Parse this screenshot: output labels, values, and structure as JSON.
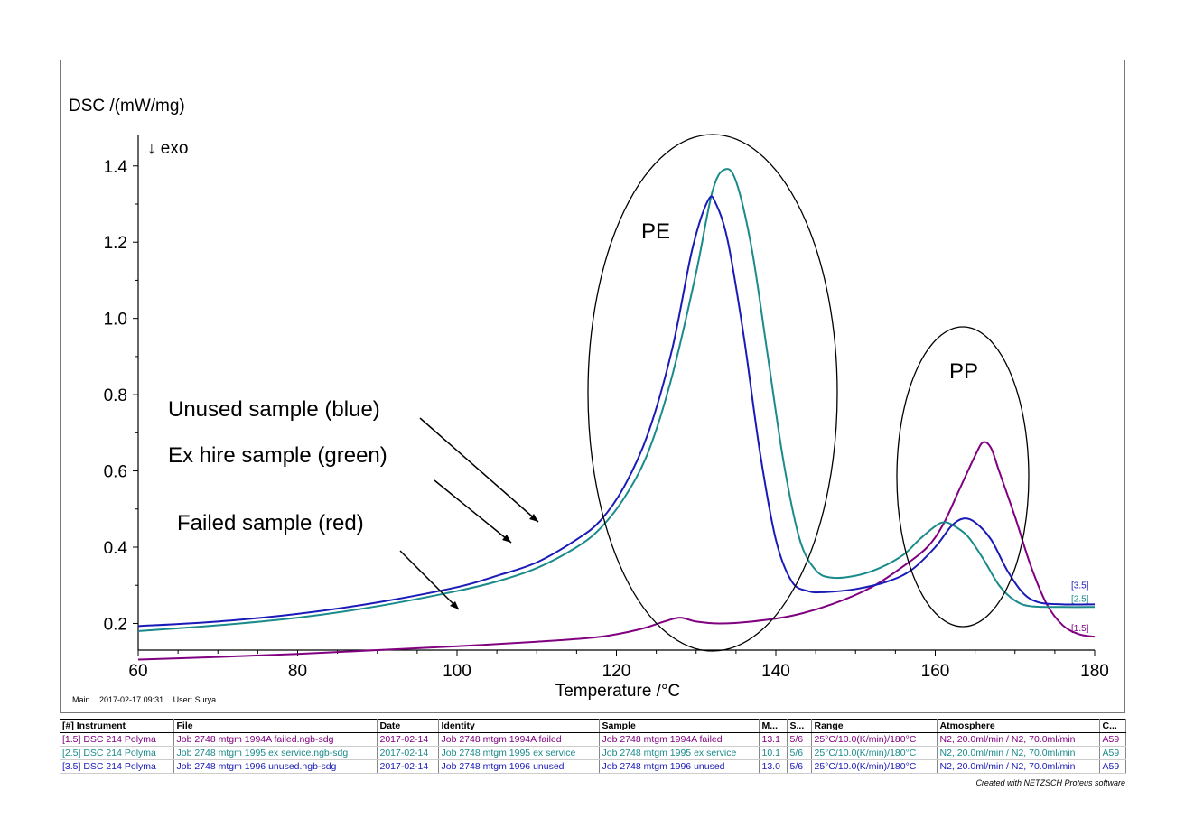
{
  "chart_data": {
    "type": "line",
    "ylabel": "DSC /(mW/mg)",
    "ylabel_note": "↓ exo",
    "xlabel": "Temperature /°C",
    "xlim": [
      60,
      180
    ],
    "ylim": [
      0.13,
      1.48
    ],
    "x_ticks": [
      60,
      80,
      100,
      120,
      140,
      160,
      180
    ],
    "y_ticks": [
      0.2,
      0.4,
      0.6,
      0.8,
      1.0,
      1.2,
      1.4
    ],
    "y_tick_labels": [
      "0.2",
      "0.4",
      "0.6",
      "0.8",
      "1.0",
      "1.2",
      "1.4"
    ],
    "grid": false,
    "series": [
      {
        "name": "[1.5]",
        "color": "#800080",
        "points": [
          [
            60,
            0.105
          ],
          [
            70,
            0.112
          ],
          [
            80,
            0.12
          ],
          [
            90,
            0.13
          ],
          [
            100,
            0.14
          ],
          [
            110,
            0.152
          ],
          [
            118,
            0.165
          ],
          [
            123,
            0.185
          ],
          [
            126,
            0.205
          ],
          [
            128,
            0.215
          ],
          [
            130,
            0.205
          ],
          [
            133,
            0.2
          ],
          [
            137,
            0.205
          ],
          [
            142,
            0.22
          ],
          [
            147,
            0.25
          ],
          [
            152,
            0.295
          ],
          [
            156,
            0.35
          ],
          [
            159,
            0.4
          ],
          [
            161,
            0.46
          ],
          [
            163,
            0.55
          ],
          [
            165,
            0.64
          ],
          [
            166,
            0.675
          ],
          [
            167,
            0.66
          ],
          [
            168,
            0.6
          ],
          [
            170,
            0.48
          ],
          [
            172,
            0.35
          ],
          [
            174,
            0.25
          ],
          [
            176,
            0.195
          ],
          [
            178,
            0.172
          ],
          [
            180,
            0.165
          ]
        ]
      },
      {
        "name": "[2.5]",
        "color": "#1a8a8a",
        "points": [
          [
            60,
            0.18
          ],
          [
            70,
            0.195
          ],
          [
            80,
            0.215
          ],
          [
            90,
            0.245
          ],
          [
            100,
            0.285
          ],
          [
            105,
            0.31
          ],
          [
            110,
            0.345
          ],
          [
            115,
            0.4
          ],
          [
            118,
            0.45
          ],
          [
            121,
            0.53
          ],
          [
            124,
            0.65
          ],
          [
            127,
            0.85
          ],
          [
            130,
            1.12
          ],
          [
            132,
            1.33
          ],
          [
            133.5,
            1.39
          ],
          [
            135,
            1.36
          ],
          [
            137,
            1.18
          ],
          [
            139,
            0.9
          ],
          [
            141,
            0.62
          ],
          [
            143,
            0.42
          ],
          [
            145,
            0.34
          ],
          [
            147,
            0.32
          ],
          [
            150,
            0.325
          ],
          [
            153,
            0.345
          ],
          [
            156,
            0.38
          ],
          [
            158,
            0.42
          ],
          [
            160,
            0.455
          ],
          [
            161,
            0.465
          ],
          [
            162,
            0.46
          ],
          [
            164,
            0.43
          ],
          [
            166,
            0.37
          ],
          [
            168,
            0.3
          ],
          [
            170,
            0.26
          ],
          [
            172,
            0.245
          ],
          [
            176,
            0.243
          ],
          [
            180,
            0.243
          ]
        ]
      },
      {
        "name": "[3.5]",
        "color": "#1a1ab8",
        "points": [
          [
            60,
            0.193
          ],
          [
            70,
            0.205
          ],
          [
            80,
            0.225
          ],
          [
            90,
            0.255
          ],
          [
            100,
            0.295
          ],
          [
            105,
            0.325
          ],
          [
            110,
            0.36
          ],
          [
            115,
            0.42
          ],
          [
            118,
            0.47
          ],
          [
            121,
            0.56
          ],
          [
            124,
            0.7
          ],
          [
            127,
            0.92
          ],
          [
            129.5,
            1.18
          ],
          [
            131.5,
            1.31
          ],
          [
            132.5,
            1.3
          ],
          [
            134,
            1.2
          ],
          [
            136,
            0.95
          ],
          [
            138,
            0.65
          ],
          [
            140,
            0.42
          ],
          [
            142,
            0.31
          ],
          [
            144,
            0.285
          ],
          [
            146,
            0.282
          ],
          [
            150,
            0.29
          ],
          [
            154,
            0.31
          ],
          [
            157,
            0.34
          ],
          [
            160,
            0.4
          ],
          [
            162,
            0.455
          ],
          [
            163.5,
            0.475
          ],
          [
            165,
            0.465
          ],
          [
            167,
            0.42
          ],
          [
            169,
            0.34
          ],
          [
            171,
            0.28
          ],
          [
            173,
            0.255
          ],
          [
            176,
            0.25
          ],
          [
            180,
            0.25
          ]
        ]
      }
    ],
    "annotations": {
      "pe_label": "PE",
      "pp_label": "PP",
      "unused": "Unused sample (blue)",
      "exhire": "Ex hire sample (green)",
      "failed": "Failed sample (red)"
    }
  },
  "meta": {
    "segment": "Main",
    "datetime": "2017-02-17 09:31",
    "user": "User: Surya"
  },
  "legend": {
    "headers": [
      "[#] Instrument",
      "File",
      "Date",
      "Identity",
      "Sample",
      "M...",
      "S...",
      "Range",
      "Atmosphere",
      "C..."
    ],
    "rows": [
      {
        "color": "#800080",
        "cells": [
          "[1.5] DSC 214 Polyma",
          "Job 2748 mtgm 1994A failed.ngb-sdg",
          "2017-02-14",
          "Job 2748 mtgm 1994A failed",
          "Job 2748 mtgm 1994A failed",
          "13.1",
          "5/6",
          "25°C/10.0(K/min)/180°C",
          "N2, 20.0ml/min / N2, 70.0ml/min",
          "A59"
        ]
      },
      {
        "color": "#1a8a8a",
        "cells": [
          "[2.5] DSC 214 Polyma",
          "Job 2748 mtgm 1995 ex service.ngb-sdg",
          "2017-02-14",
          "Job 2748 mtgm 1995 ex service",
          "Job 2748 mtgm 1995 ex service",
          "10.1",
          "5/6",
          "25°C/10.0(K/min)/180°C",
          "N2, 20.0ml/min / N2, 70.0ml/min",
          "A59"
        ]
      },
      {
        "color": "#1a1ab8",
        "cells": [
          "[3.5] DSC 214 Polyma",
          "Job 2748 mtgm 1996 unused.ngb-sdg",
          "2017-02-14",
          "Job 2748 mtgm 1996 unused",
          "Job 2748 mtgm 1996 unused",
          "13.0",
          "5/6",
          "25°C/10.0(K/min)/180°C",
          "N2, 20.0ml/min / N2, 70.0ml/min",
          "A59"
        ]
      }
    ]
  },
  "credit": "Created with NETZSCH Proteus software"
}
